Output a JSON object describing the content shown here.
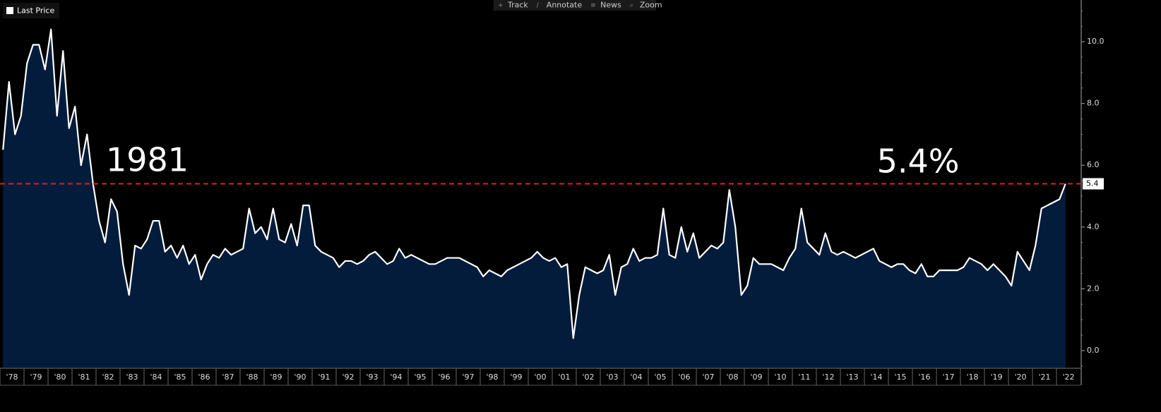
{
  "toolbar": [
    "Track",
    "Annotate",
    "News",
    "Zoom"
  ],
  "chart_data": {
    "type": "area",
    "legend": "top-left",
    "series": [
      {
        "name": "Last Price",
        "color": "#ffffff",
        "fill": "#041c3c",
        "x": [
          1978.125,
          1978.375,
          1978.625,
          1978.875,
          1979.125,
          1979.375,
          1979.625,
          1979.875,
          1980.125,
          1980.375,
          1980.625,
          1980.875,
          1981.125,
          1981.375,
          1981.625,
          1981.875,
          1982.125,
          1982.375,
          1982.625,
          1982.875,
          1983.125,
          1983.375,
          1983.625,
          1983.875,
          1984.125,
          1984.375,
          1984.625,
          1984.875,
          1985.125,
          1985.375,
          1985.625,
          1985.875,
          1986.125,
          1986.375,
          1986.625,
          1986.875,
          1987.125,
          1987.375,
          1987.625,
          1987.875,
          1988.125,
          1988.375,
          1988.625,
          1988.875,
          1989.125,
          1989.375,
          1989.625,
          1989.875,
          1990.125,
          1990.375,
          1990.625,
          1990.875,
          1991.125,
          1991.375,
          1991.625,
          1991.875,
          1992.125,
          1992.375,
          1992.625,
          1992.875,
          1993.125,
          1993.375,
          1993.625,
          1993.875,
          1994.125,
          1994.375,
          1994.625,
          1994.875,
          1995.125,
          1995.375,
          1995.625,
          1995.875,
          1996.125,
          1996.375,
          1996.625,
          1996.875,
          1997.125,
          1997.375,
          1997.625,
          1997.875,
          1998.125,
          1998.375,
          1998.625,
          1998.875,
          1999.125,
          1999.375,
          1999.625,
          1999.875,
          2000.125,
          2000.375,
          2000.625,
          2000.875,
          2001.125,
          2001.375,
          2001.625,
          2001.875,
          2002.125,
          2002.375,
          2002.625,
          2002.875,
          2003.125,
          2003.375,
          2003.625,
          2003.875,
          2004.125,
          2004.375,
          2004.625,
          2004.875,
          2005.125,
          2005.375,
          2005.625,
          2005.875,
          2006.125,
          2006.375,
          2006.625,
          2006.875,
          2007.125,
          2007.375,
          2007.625,
          2007.875,
          2008.125,
          2008.375,
          2008.625,
          2008.875,
          2009.125,
          2009.375,
          2009.625,
          2009.875,
          2010.125,
          2010.375,
          2010.625,
          2010.875,
          2011.125,
          2011.375,
          2011.625,
          2011.875,
          2012.125,
          2012.375,
          2012.625,
          2012.875,
          2013.125,
          2013.375,
          2013.625,
          2013.875,
          2014.125,
          2014.375,
          2014.625,
          2014.875,
          2015.125,
          2015.375,
          2015.625,
          2015.875,
          2016.125,
          2016.375,
          2016.625,
          2016.875,
          2017.125,
          2017.375,
          2017.625,
          2017.875,
          2018.125,
          2018.375,
          2018.625,
          2018.875,
          2019.125,
          2019.375,
          2019.625,
          2019.875,
          2020.125,
          2020.375,
          2020.625,
          2020.875,
          2021.125,
          2021.375,
          2021.625,
          2021.875,
          2022.125,
          2022.375
        ],
        "values": [
          6.5,
          8.7,
          7.0,
          7.6,
          9.3,
          9.9,
          9.9,
          9.1,
          10.4,
          7.6,
          9.7,
          7.2,
          7.9,
          6.0,
          7.0,
          5.4,
          4.2,
          3.5,
          4.9,
          4.5,
          2.8,
          1.8,
          3.4,
          3.3,
          3.6,
          4.2,
          4.2,
          3.2,
          3.4,
          3.0,
          3.4,
          2.8,
          3.1,
          2.3,
          2.8,
          3.1,
          3.0,
          3.3,
          3.1,
          3.2,
          3.3,
          4.6,
          3.8,
          4.0,
          3.6,
          4.6,
          3.6,
          3.5,
          4.1,
          3.4,
          4.7,
          4.7,
          3.4,
          3.2,
          3.1,
          3.0,
          2.7,
          2.9,
          2.9,
          2.8,
          2.9,
          3.1,
          3.2,
          3.0,
          2.8,
          2.9,
          3.3,
          3.0,
          3.1,
          3.0,
          2.9,
          2.8,
          2.8,
          2.9,
          3.0,
          3.0,
          3.0,
          2.9,
          2.8,
          2.7,
          2.4,
          2.6,
          2.5,
          2.4,
          2.6,
          2.7,
          2.8,
          2.9,
          3.0,
          3.2,
          3.0,
          2.9,
          3.0,
          2.7,
          2.8,
          0.4,
          1.8,
          2.7,
          2.6,
          2.5,
          2.6,
          3.1,
          1.8,
          2.7,
          2.8,
          3.3,
          2.9,
          3.0,
          3.0,
          3.1,
          4.6,
          3.1,
          3.0,
          4.0,
          3.2,
          3.8,
          3.0,
          3.2,
          3.4,
          3.3,
          3.5,
          5.2,
          4.0,
          1.8,
          2.1,
          3.0,
          2.8,
          2.8,
          2.8,
          2.7,
          2.6,
          3.0,
          3.3,
          4.6,
          3.5,
          3.3,
          3.1,
          3.8,
          3.2,
          3.1,
          3.2,
          3.1,
          3.0,
          3.1,
          3.2,
          3.3,
          2.9,
          2.8,
          2.7,
          2.8,
          2.8,
          2.6,
          2.5,
          2.8,
          2.4,
          2.4,
          2.6,
          2.6,
          2.6,
          2.6,
          2.7,
          3.0,
          2.9,
          2.8,
          2.6,
          2.8,
          2.6,
          2.4,
          2.1,
          3.2,
          2.9,
          2.6,
          3.4,
          4.6,
          4.7,
          4.8,
          4.9,
          5.4
        ]
      }
    ],
    "xlim": [
      1978,
      2023
    ],
    "xticks": [
      {
        "value": 1978,
        "label": "'78"
      },
      {
        "value": 1979,
        "label": "'79"
      },
      {
        "value": 1980,
        "label": "'80"
      },
      {
        "value": 1981,
        "label": "'81"
      },
      {
        "value": 1982,
        "label": "'82"
      },
      {
        "value": 1983,
        "label": "'83"
      },
      {
        "value": 1984,
        "label": "'84"
      },
      {
        "value": 1985,
        "label": "'85"
      },
      {
        "value": 1986,
        "label": "'86"
      },
      {
        "value": 1987,
        "label": "'87"
      },
      {
        "value": 1988,
        "label": "'88"
      },
      {
        "value": 1989,
        "label": "'89"
      },
      {
        "value": 1990,
        "label": "'90"
      },
      {
        "value": 1991,
        "label": "'91"
      },
      {
        "value": 1992,
        "label": "'92"
      },
      {
        "value": 1993,
        "label": "'93"
      },
      {
        "value": 1994,
        "label": "'94"
      },
      {
        "value": 1995,
        "label": "'95"
      },
      {
        "value": 1996,
        "label": "'96"
      },
      {
        "value": 1997,
        "label": "'97"
      },
      {
        "value": 1998,
        "label": "'98"
      },
      {
        "value": 1999,
        "label": "'99"
      },
      {
        "value": 2000,
        "label": "'00"
      },
      {
        "value": 2001,
        "label": "'01"
      },
      {
        "value": 2002,
        "label": "'02"
      },
      {
        "value": 2003,
        "label": "'03"
      },
      {
        "value": 2004,
        "label": "'04"
      },
      {
        "value": 2005,
        "label": "'05"
      },
      {
        "value": 2006,
        "label": "'06"
      },
      {
        "value": 2007,
        "label": "'07"
      },
      {
        "value": 2008,
        "label": "'08"
      },
      {
        "value": 2009,
        "label": "'09"
      },
      {
        "value": 2010,
        "label": "'10"
      },
      {
        "value": 2011,
        "label": "'11"
      },
      {
        "value": 2012,
        "label": "'12"
      },
      {
        "value": 2013,
        "label": "'13"
      },
      {
        "value": 2014,
        "label": "'14"
      },
      {
        "value": 2015,
        "label": "'15"
      },
      {
        "value": 2016,
        "label": "'16"
      },
      {
        "value": 2017,
        "label": "'17"
      },
      {
        "value": 2018,
        "label": "'18"
      },
      {
        "value": 2019,
        "label": "'19"
      },
      {
        "value": 2020,
        "label": "'20"
      },
      {
        "value": 2021,
        "label": "'21"
      },
      {
        "value": 2022,
        "label": "'22"
      }
    ],
    "ylim": [
      -0.55,
      11.35
    ],
    "yticks": [
      {
        "value": 0,
        "label": "0.0"
      },
      {
        "value": 2,
        "label": "2.0"
      },
      {
        "value": 4,
        "label": "4.0"
      },
      {
        "value": 6,
        "label": "6.0"
      },
      {
        "value": 8,
        "label": "8.0"
      },
      {
        "value": 10,
        "label": "10.0"
      }
    ],
    "reference_line": {
      "value": 5.4,
      "label": "5.4",
      "color": "#e0201c"
    },
    "annotations": [
      "1981",
      "5.4%"
    ]
  }
}
